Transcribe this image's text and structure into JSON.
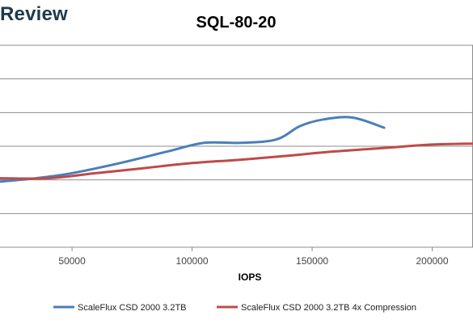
{
  "brand": {
    "text": "Review"
  },
  "chart_data": {
    "type": "line",
    "title": "SQL-80-20",
    "xlabel": "IOPS",
    "ylabel": "",
    "xlim": [
      20000,
      217000
    ],
    "ylim": [
      0,
      6
    ],
    "x_ticks": [
      50000,
      100000,
      150000,
      200000
    ],
    "grid": true,
    "legend_position": "bottom",
    "series": [
      {
        "name": "ScaleFlux CSD 2000 3.2TB",
        "color": "#4a7ebb",
        "x": [
          20000,
          35000,
          50000,
          70000,
          90000,
          105000,
          120000,
          135000,
          145000,
          155000,
          167000,
          180000
        ],
        "y": [
          1.95,
          2.05,
          2.2,
          2.5,
          2.85,
          3.1,
          3.1,
          3.2,
          3.6,
          3.8,
          3.85,
          3.55
        ]
      },
      {
        "name": "ScaleFlux CSD 2000 3.2TB 4x Compression",
        "color": "#be4b48",
        "x": [
          20000,
          40000,
          60000,
          80000,
          100000,
          120000,
          140000,
          160000,
          180000,
          200000,
          217000
        ],
        "y": [
          2.05,
          2.05,
          2.2,
          2.35,
          2.5,
          2.6,
          2.72,
          2.85,
          2.95,
          3.05,
          3.08
        ]
      }
    ]
  }
}
